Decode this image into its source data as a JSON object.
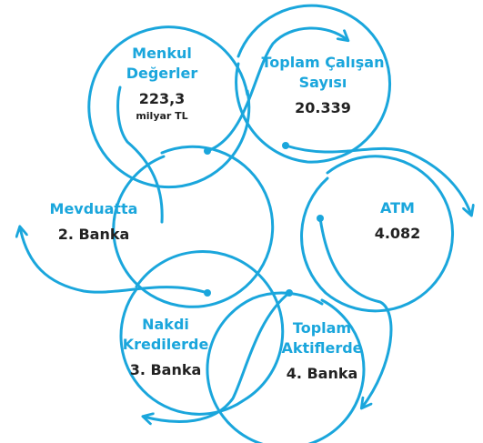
{
  "colors": {
    "ring": "#1aa6dc",
    "label": "#1aa6dc",
    "value": "#222222"
  },
  "nodes": [
    {
      "id": "menkul",
      "label": "Menkul\nDeğerler",
      "value": "223,3",
      "unit": "milyar TL"
    },
    {
      "id": "calisan",
      "label": "Toplam Çalışan\nSayısı",
      "value": "20.339"
    },
    {
      "id": "atm",
      "label": "ATM",
      "value": "4.082"
    },
    {
      "id": "aktif",
      "label": "Toplam\nAktiflerde",
      "value": "4. Banka"
    },
    {
      "id": "nakdi",
      "label": "Nakdi\nKredilerde",
      "value": "3. Banka"
    },
    {
      "id": "mevduat",
      "label": "Mevduatta",
      "value": "2. Banka"
    }
  ]
}
